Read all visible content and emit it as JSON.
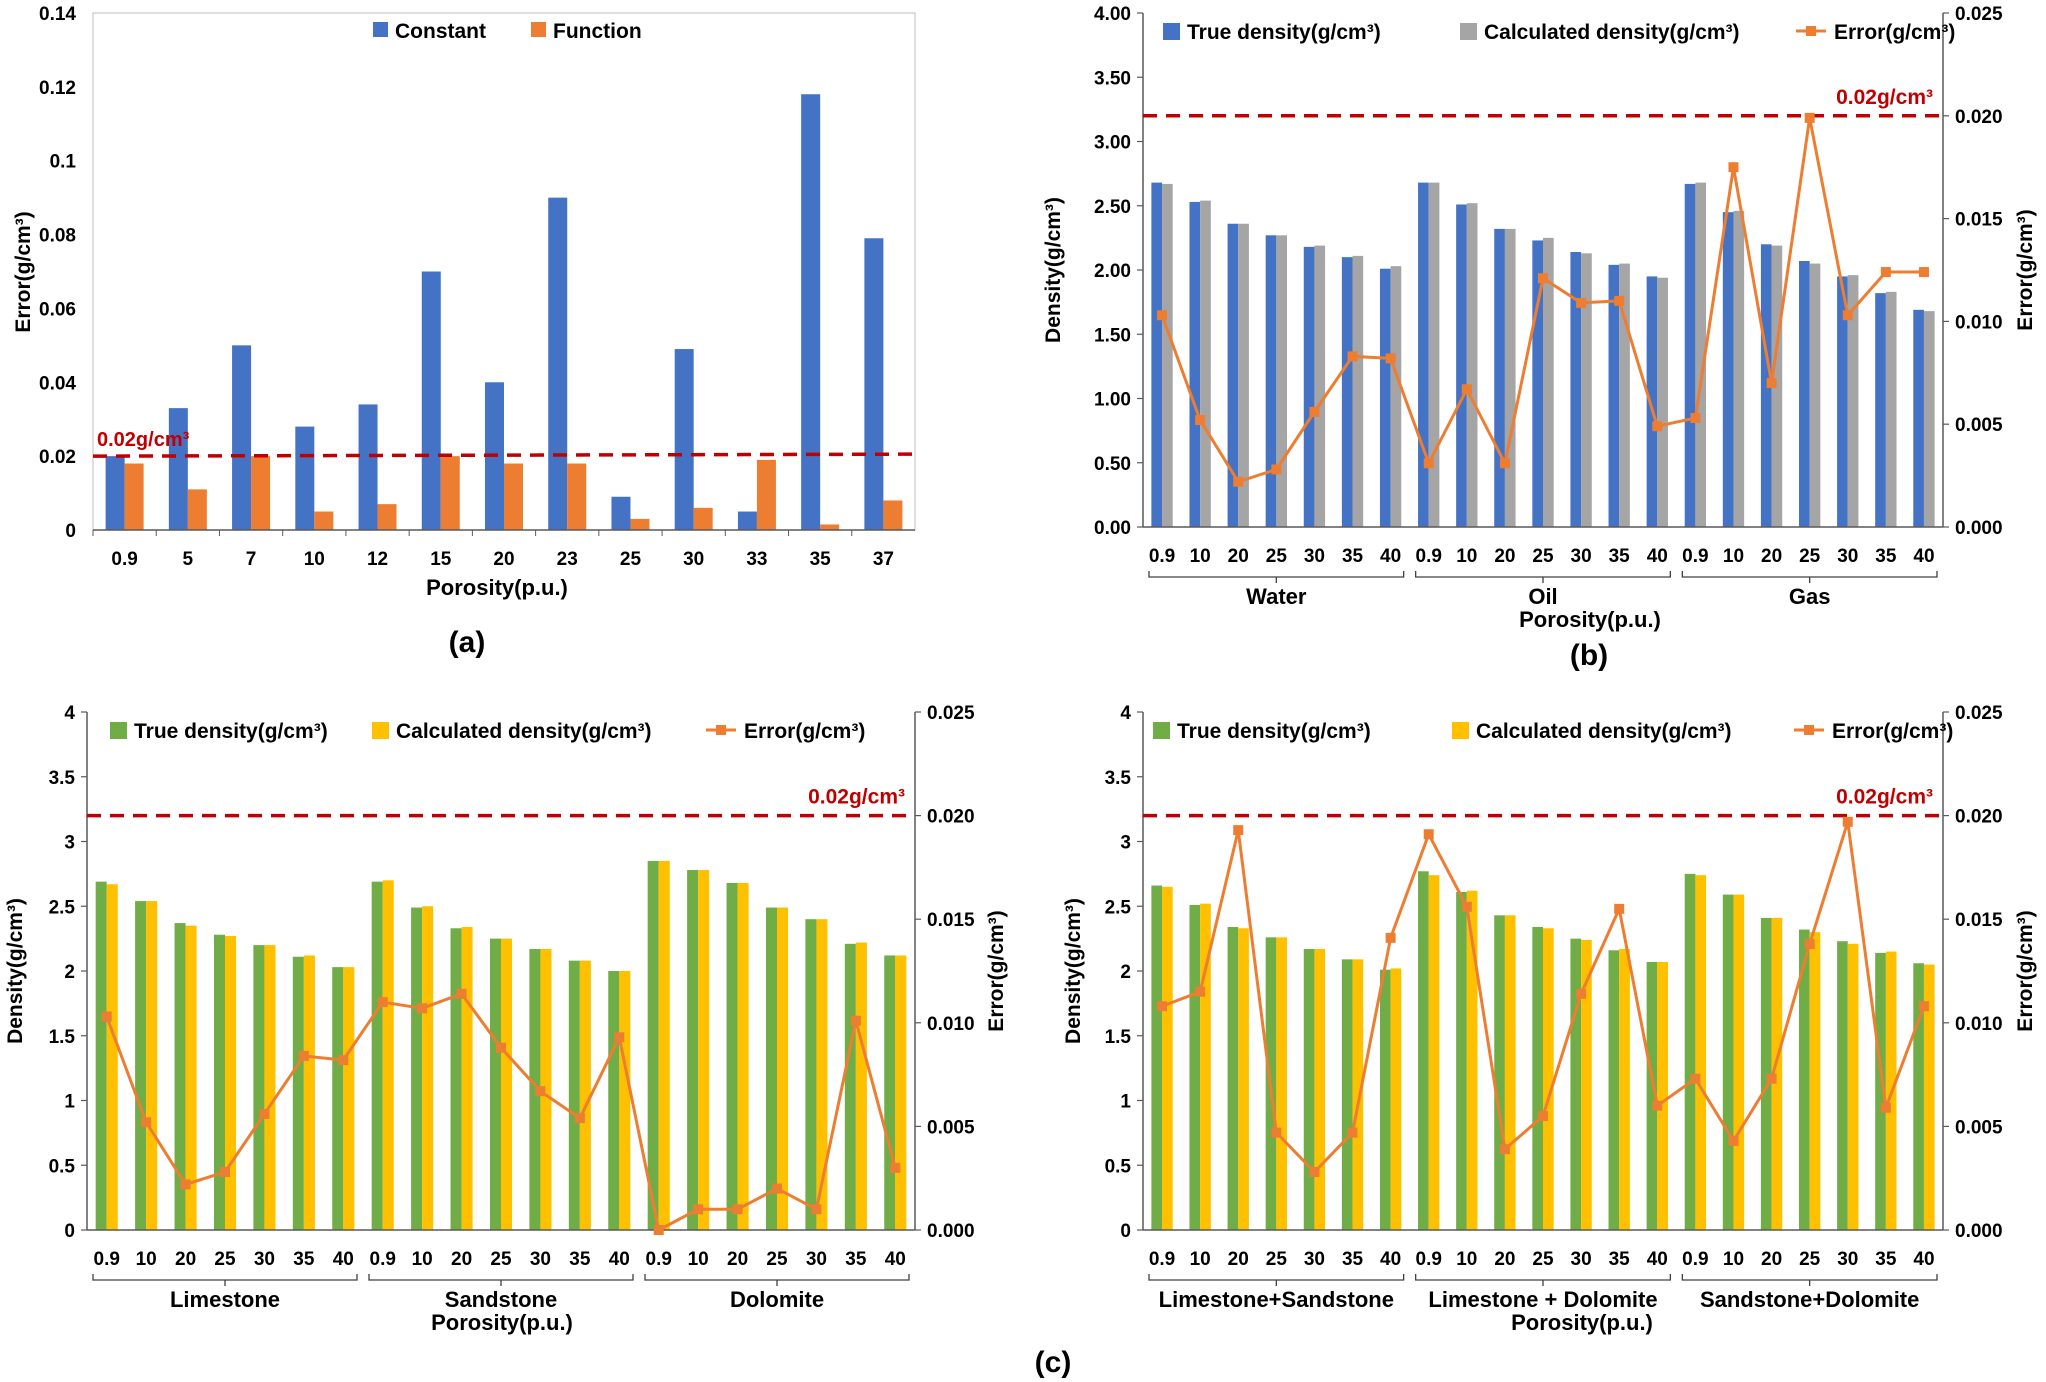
{
  "panel_labels": {
    "a": "(a)",
    "b": "(b)",
    "c": "(c)"
  },
  "colors": {
    "constant": "#4472C4",
    "function": "#ED7D31",
    "true_b": "#4472C4",
    "calc_b": "#A5A5A5",
    "true_c": "#70AD47",
    "calc_c": "#FFC000",
    "error": "#ED7D31",
    "threshold": "#C00000",
    "axis": "#595959"
  },
  "chart_data": [
    {
      "id": "a",
      "type": "bar",
      "title": "",
      "xlabel": "Porosity(p.u.)",
      "ylabel": "Error(g/cm³)",
      "categories": [
        "0.9",
        "5",
        "7",
        "10",
        "12",
        "15",
        "20",
        "23",
        "25",
        "30",
        "33",
        "35",
        "37"
      ],
      "series": [
        {
          "name": "Constant",
          "values": [
            0.02,
            0.033,
            0.05,
            0.028,
            0.034,
            0.07,
            0.04,
            0.09,
            0.009,
            0.049,
            0.005,
            0.118,
            0.079
          ]
        },
        {
          "name": "Function",
          "values": [
            0.018,
            0.011,
            0.02,
            0.005,
            0.007,
            0.02,
            0.018,
            0.018,
            0.003,
            0.006,
            0.019,
            0.0015,
            0.008
          ]
        }
      ],
      "ylim": [
        0,
        0.14
      ],
      "yticks": [
        "0",
        "0.02",
        "0.04",
        "0.06",
        "0.08",
        "0.1",
        "0.12",
        "0.14"
      ],
      "threshold": {
        "value": 0.02,
        "label": "0.02g/cm³"
      },
      "legend": "top-center"
    },
    {
      "id": "b",
      "type": "bar+line",
      "xlabel": "Porosity(p.u.)",
      "ylabel": "Density(g/cm³)",
      "y2label": "Error(g/cm³)",
      "groups": [
        "Water",
        "Oil",
        "Gas"
      ],
      "categories": [
        "0.9",
        "10",
        "20",
        "25",
        "30",
        "35",
        "40",
        "0.9",
        "10",
        "20",
        "25",
        "30",
        "35",
        "40",
        "0.9",
        "10",
        "20",
        "25",
        "30",
        "35",
        "40"
      ],
      "series": [
        {
          "name": "True density(g/cm³)",
          "values": [
            2.68,
            2.53,
            2.36,
            2.27,
            2.18,
            2.1,
            2.01,
            2.68,
            2.51,
            2.32,
            2.23,
            2.14,
            2.04,
            1.95,
            2.67,
            2.45,
            2.2,
            2.07,
            1.95,
            1.82,
            1.69
          ]
        },
        {
          "name": "Calculated density(g/cm³)",
          "values": [
            2.67,
            2.54,
            2.36,
            2.27,
            2.19,
            2.11,
            2.03,
            2.68,
            2.52,
            2.32,
            2.25,
            2.13,
            2.05,
            1.94,
            2.68,
            2.46,
            2.19,
            2.05,
            1.96,
            1.83,
            1.68
          ]
        },
        {
          "name": "Error(g/cm³)",
          "axis": "right",
          "values": [
            0.0103,
            0.0052,
            0.0022,
            0.0028,
            0.0056,
            0.0083,
            0.0082,
            0.0031,
            0.0067,
            0.0031,
            0.0121,
            0.0109,
            0.011,
            0.0049,
            0.0053,
            0.0175,
            0.007,
            0.0199,
            0.0103,
            0.0124,
            0.0124
          ]
        }
      ],
      "ylim": [
        0,
        4
      ],
      "yticks": [
        "0.00",
        "0.50",
        "1.00",
        "1.50",
        "2.00",
        "2.50",
        "3.00",
        "3.50",
        "4.00"
      ],
      "y2lim": [
        0,
        0.025
      ],
      "y2ticks": [
        "0.000",
        "0.005",
        "0.010",
        "0.015",
        "0.020",
        "0.025"
      ],
      "threshold": {
        "value": 0.02,
        "label": "0.02g/cm³"
      },
      "legend": "top"
    },
    {
      "id": "c1",
      "type": "bar+line",
      "xlabel": "Porosity(p.u.)",
      "ylabel": "Density(g/cm³)",
      "y2label": "Error(g/cm³)",
      "groups": [
        "Limestone",
        "Sandstone",
        "Dolomite"
      ],
      "categories": [
        "0.9",
        "10",
        "20",
        "25",
        "30",
        "35",
        "40",
        "0.9",
        "10",
        "20",
        "25",
        "30",
        "35",
        "40",
        "0.9",
        "10",
        "20",
        "25",
        "30",
        "35",
        "40"
      ],
      "series": [
        {
          "name": "True density(g/cm³)",
          "values": [
            2.69,
            2.54,
            2.37,
            2.28,
            2.2,
            2.11,
            2.03,
            2.69,
            2.49,
            2.33,
            2.25,
            2.17,
            2.08,
            2.0,
            2.85,
            2.78,
            2.68,
            2.49,
            2.4,
            2.21,
            2.12
          ]
        },
        {
          "name": "Calculated density(g/cm³)",
          "values": [
            2.67,
            2.54,
            2.35,
            2.27,
            2.2,
            2.12,
            2.03,
            2.7,
            2.5,
            2.34,
            2.25,
            2.17,
            2.08,
            2.0,
            2.85,
            2.78,
            2.68,
            2.49,
            2.4,
            2.22,
            2.12
          ]
        },
        {
          "name": "Error(g/cm³)",
          "axis": "right",
          "values": [
            0.0103,
            0.0052,
            0.0022,
            0.0028,
            0.0056,
            0.0084,
            0.0082,
            0.011,
            0.0107,
            0.0114,
            0.0088,
            0.0067,
            0.0054,
            0.0093,
            0.0,
            0.001,
            0.001,
            0.002,
            0.001,
            0.0101,
            0.003
          ]
        }
      ],
      "ylim": [
        0,
        4
      ],
      "yticks": [
        "0",
        "0.5",
        "1",
        "1.5",
        "2",
        "2.5",
        "3",
        "3.5",
        "4"
      ],
      "y2lim": [
        0,
        0.025
      ],
      "y2ticks": [
        "0.000",
        "0.005",
        "0.010",
        "0.015",
        "0.020",
        "0.025"
      ],
      "threshold": {
        "value": 0.02,
        "label": "0.02g/cm³"
      },
      "legend": "top"
    },
    {
      "id": "c2",
      "type": "bar+line",
      "xlabel": "Porosity(p.u.)",
      "ylabel": "Density(g/cm³)",
      "y2label": "Error(g/cm³)",
      "groups": [
        "Limestone+Sandstone",
        "Limestone + Dolomite",
        "Sandstone+Dolomite"
      ],
      "categories": [
        "0.9",
        "10",
        "20",
        "25",
        "30",
        "35",
        "40",
        "0.9",
        "10",
        "20",
        "25",
        "30",
        "35",
        "40",
        "0.9",
        "10",
        "20",
        "25",
        "30",
        "35",
        "40"
      ],
      "series": [
        {
          "name": "True density(g/cm³)",
          "values": [
            2.66,
            2.51,
            2.34,
            2.26,
            2.17,
            2.09,
            2.01,
            2.77,
            2.61,
            2.43,
            2.34,
            2.25,
            2.16,
            2.07,
            2.75,
            2.59,
            2.41,
            2.32,
            2.23,
            2.14,
            2.06
          ]
        },
        {
          "name": "Calculated density(g/cm³)",
          "values": [
            2.65,
            2.52,
            2.33,
            2.26,
            2.17,
            2.09,
            2.02,
            2.74,
            2.62,
            2.43,
            2.33,
            2.24,
            2.17,
            2.07,
            2.74,
            2.59,
            2.41,
            2.3,
            2.21,
            2.15,
            2.05
          ]
        },
        {
          "name": "Error(g/cm³)",
          "axis": "right",
          "values": [
            0.0108,
            0.0115,
            0.0193,
            0.0047,
            0.0028,
            0.0047,
            0.0141,
            0.0191,
            0.0156,
            0.0039,
            0.0055,
            0.0114,
            0.0155,
            0.006,
            0.0073,
            0.0043,
            0.0073,
            0.0138,
            0.0197,
            0.0059,
            0.0108
          ]
        }
      ],
      "ylim": [
        0,
        4
      ],
      "yticks": [
        "0",
        "0.5",
        "1",
        "1.5",
        "2",
        "2.5",
        "3",
        "3.5",
        "4"
      ],
      "y2lim": [
        0,
        0.025
      ],
      "y2ticks": [
        "0.000",
        "0.005",
        "0.010",
        "0.015",
        "0.020",
        "0.025"
      ],
      "threshold": {
        "value": 0.02,
        "label": "0.02g/cm³"
      },
      "legend": "top"
    }
  ]
}
